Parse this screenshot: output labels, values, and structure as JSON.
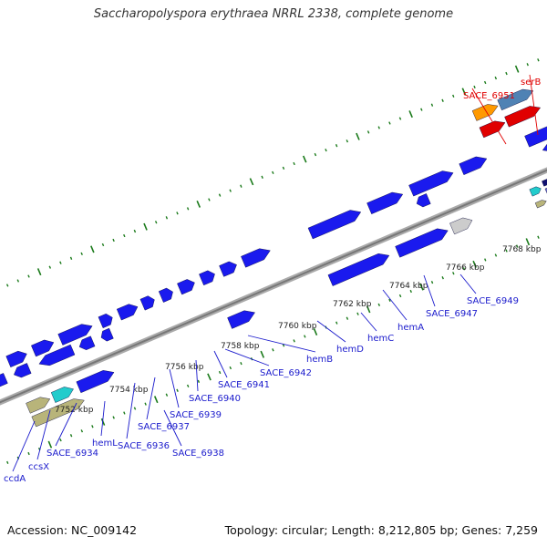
{
  "title": "Saccharopolyspora erythraea NRRL 2338, complete genome",
  "accession": "Accession: NC_009142",
  "topology": "Topology: circular; Length: 8,212,805 bp; Genes: 7,259",
  "tick_labels": [
    "7752 kbp",
    "7754 kbp",
    "7756 kbp",
    "7758 kbp",
    "7760 kbp",
    "7762 kbp",
    "7764 kbp",
    "7766 kbp",
    "7768 kbp"
  ],
  "gene_labels": [
    "ccdA",
    "ccsX",
    "SACE_6934",
    "hemL",
    "SACE_6936",
    "SACE_6937",
    "SACE_6938",
    "SACE_6939",
    "SACE_6940",
    "SACE_6941",
    "SACE_6942",
    "hemB",
    "hemD",
    "hemC",
    "hemA",
    "SACE_6947",
    "SACE_6949",
    "SACE_6951",
    "serB"
  ],
  "colors": {
    "gene_blue": "#1a1aee",
    "highlight_red": "#e00000",
    "label_blue": "#1a1acc",
    "tick_green": "#1a7a1a",
    "backbone": "#8a8a8a",
    "khaki": "#b8b47a",
    "cyan": "#22cccc",
    "orange": "#ff9900",
    "steel_blue": "#4f82b4",
    "navy": "#101070",
    "slate": "#6a6aca"
  }
}
